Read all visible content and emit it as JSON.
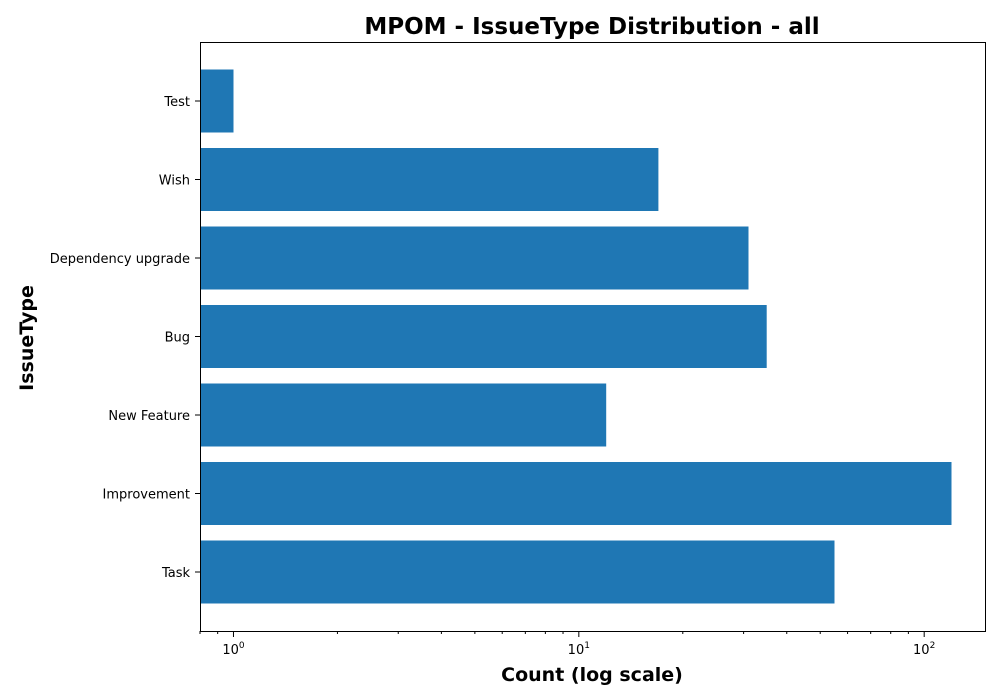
{
  "chart_data": {
    "type": "bar",
    "orientation": "horizontal",
    "title": "MPOM - IssueType Distribution - all",
    "xlabel": "Count (log scale)",
    "ylabel": "IssueType",
    "x_scale": "log",
    "xlim": [
      0.8,
      150
    ],
    "x_ticks": [
      {
        "value": 1,
        "base": "10",
        "exp": "0"
      },
      {
        "value": 10,
        "base": "10",
        "exp": "1"
      },
      {
        "value": 100,
        "base": "10",
        "exp": "2"
      }
    ],
    "categories": [
      "Task",
      "Improvement",
      "New Feature",
      "Bug",
      "Dependency upgrade",
      "Wish",
      "Test"
    ],
    "values": [
      55,
      120,
      12,
      35,
      31,
      17,
      1
    ],
    "bar_color": "#1f77b4",
    "grid": false,
    "legend": "none"
  }
}
